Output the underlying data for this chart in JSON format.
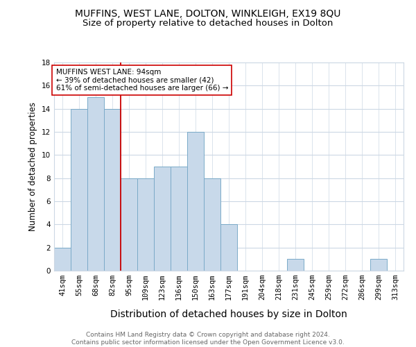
{
  "title": "MUFFINS, WEST LANE, DOLTON, WINKLEIGH, EX19 8QU",
  "subtitle": "Size of property relative to detached houses in Dolton",
  "xlabel": "Distribution of detached houses by size in Dolton",
  "ylabel": "Number of detached properties",
  "bins": [
    "41sqm",
    "55sqm",
    "68sqm",
    "82sqm",
    "95sqm",
    "109sqm",
    "123sqm",
    "136sqm",
    "150sqm",
    "163sqm",
    "177sqm",
    "191sqm",
    "204sqm",
    "218sqm",
    "231sqm",
    "245sqm",
    "259sqm",
    "272sqm",
    "286sqm",
    "299sqm",
    "313sqm"
  ],
  "values": [
    2,
    14,
    15,
    14,
    8,
    8,
    9,
    9,
    12,
    8,
    4,
    0,
    0,
    0,
    1,
    0,
    0,
    0,
    0,
    1,
    0
  ],
  "bar_color": "#c8d9ea",
  "bar_edge_color": "#7aaac8",
  "property_line_index": 4,
  "property_line_color": "#cc0000",
  "annotation_text": "MUFFINS WEST LANE: 94sqm\n← 39% of detached houses are smaller (42)\n61% of semi-detached houses are larger (66) →",
  "annotation_box_color": "#ffffff",
  "annotation_box_edge_color": "#cc0000",
  "ylim": [
    0,
    18
  ],
  "yticks": [
    0,
    2,
    4,
    6,
    8,
    10,
    12,
    14,
    16,
    18
  ],
  "footer": "Contains HM Land Registry data © Crown copyright and database right 2024.\nContains public sector information licensed under the Open Government Licence v3.0.",
  "title_fontsize": 10,
  "subtitle_fontsize": 9.5,
  "xlabel_fontsize": 10,
  "ylabel_fontsize": 8.5,
  "tick_fontsize": 7.5,
  "annotation_fontsize": 7.5,
  "footer_fontsize": 6.5,
  "background_color": "#ffffff",
  "grid_color": "#ccd8e4"
}
